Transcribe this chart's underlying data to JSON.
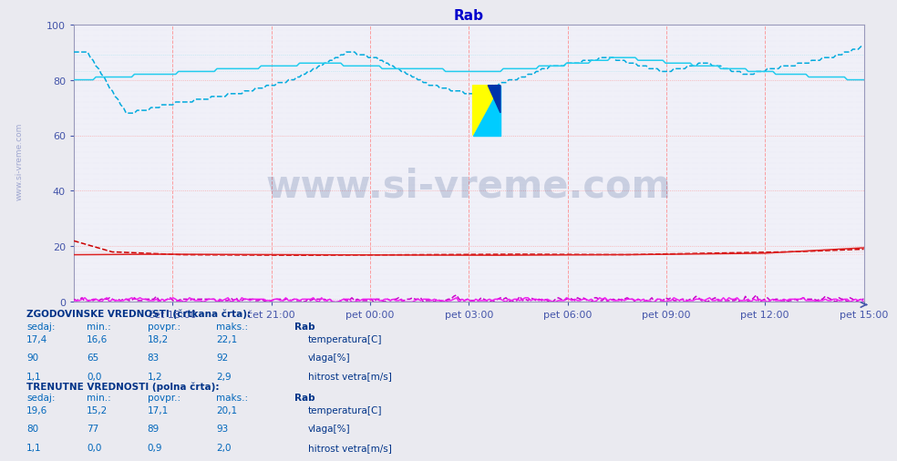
{
  "title": "Rab",
  "title_color": "#0000cc",
  "bg_color": "#eaeaf0",
  "plot_bg_color": "#f0f0f8",
  "watermark": "www.si-vreme.com",
  "watermark_color": "#1a3a7a",
  "watermark_alpha": 0.18,
  "ylim": [
    0,
    100
  ],
  "yticks": [
    0,
    20,
    40,
    60,
    80,
    100
  ],
  "x_labels": [
    "čet 18:00",
    "čet 21:00",
    "pet 00:00",
    "pet 03:00",
    "pet 06:00",
    "pet 09:00",
    "pet 12:00",
    "pet 15:00"
  ],
  "n_points": 288,
  "hist_temp_color": "#cc0000",
  "curr_temp_color": "#cc0000",
  "hist_humid_color": "#00aadd",
  "curr_humid_color": "#00aadd",
  "hist_wind_color": "#cc00cc",
  "curr_wind_color": "#cc00cc",
  "rows_hist": [
    {
      "sedaj": "17,4",
      "min": "16,6",
      "povpr": "18,2",
      "maks": "22,1",
      "label": "temperatura[C]",
      "color": "#cc0000"
    },
    {
      "sedaj": "90",
      "min": "65",
      "povpr": "83",
      "maks": "92",
      "label": "vlaga[%]",
      "color": "#0099cc"
    },
    {
      "sedaj": "1,1",
      "min": "0,0",
      "povpr": "1,2",
      "maks": "2,9",
      "label": "hitrost vetra[m/s]",
      "color": "#cc00cc"
    }
  ],
  "rows_curr": [
    {
      "sedaj": "19,6",
      "min": "15,2",
      "povpr": "17,1",
      "maks": "20,1",
      "label": "temperatura[C]",
      "color": "#cc0000"
    },
    {
      "sedaj": "80",
      "min": "77",
      "povpr": "89",
      "maks": "93",
      "label": "vlaga[%]",
      "color": "#0099cc"
    },
    {
      "sedaj": "1,1",
      "min": "0,0",
      "povpr": "0,9",
      "maks": "2,0",
      "label": "hitrost vetra[m/s]",
      "color": "#cc00cc"
    }
  ]
}
